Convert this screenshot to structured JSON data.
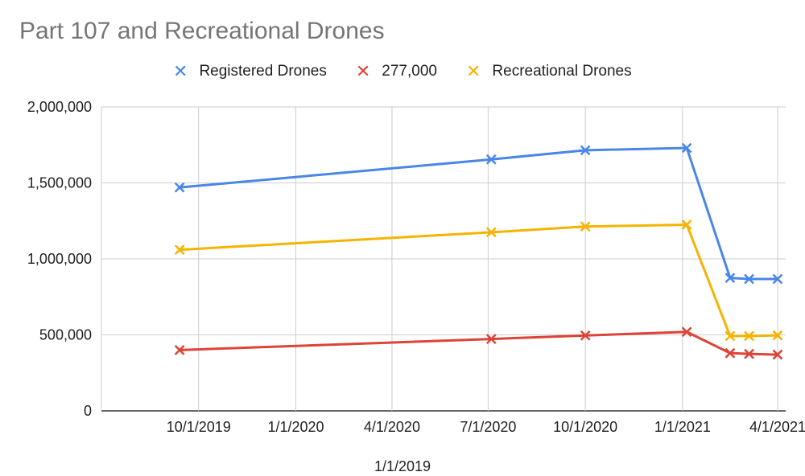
{
  "chart_data": {
    "type": "line",
    "title": "Part 107 and Recreational Drones",
    "xlabel": "1/1/2019",
    "ylabel": "",
    "ylim": [
      0,
      2000000
    ],
    "y_ticks": [
      "0",
      "500,000",
      "1,000,000",
      "1,500,000",
      "2,000,000"
    ],
    "x_ticks": [
      "10/1/2019",
      "1/1/2020",
      "4/1/2020",
      "7/1/2020",
      "10/1/2020",
      "1/1/2021",
      "4/1/2021"
    ],
    "x": [
      "2019-09-13",
      "2020-07-04",
      "2020-10-01",
      "2021-01-05",
      "2021-02-15",
      "2021-03-05",
      "2021-04-01"
    ],
    "legend_position": "top",
    "grid": true,
    "marker": "x",
    "series": [
      {
        "name": "Registered Drones",
        "color": "#4a86e8",
        "values": [
          1470000,
          1655000,
          1715000,
          1730000,
          875000,
          868000,
          868000
        ]
      },
      {
        "name": "277,000",
        "color": "#db4437",
        "values": [
          400000,
          473000,
          496000,
          520000,
          380000,
          375000,
          370000
        ]
      },
      {
        "name": "Recreational Drones",
        "color": "#f4b400",
        "values": [
          1060000,
          1175000,
          1213000,
          1225000,
          493000,
          493000,
          497000
        ]
      }
    ]
  }
}
